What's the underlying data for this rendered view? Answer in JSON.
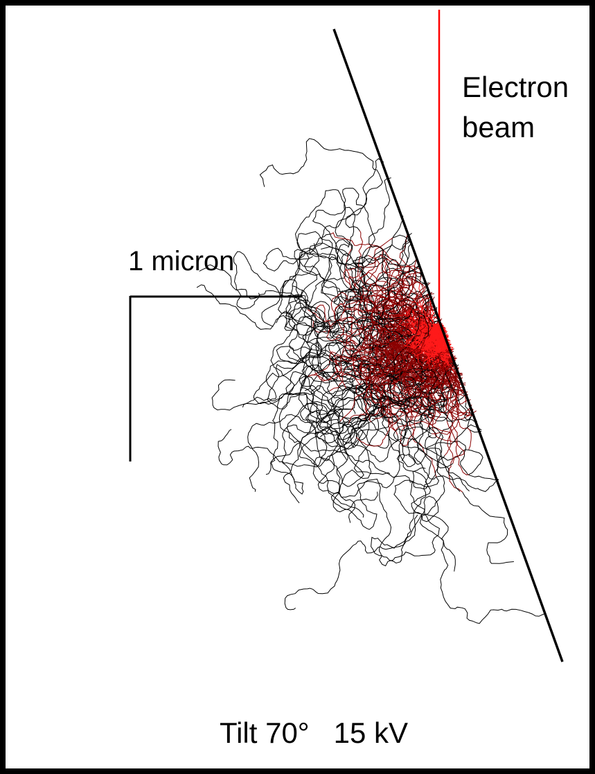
{
  "beam_label": {
    "line1": "Electron",
    "line2": "beam"
  },
  "scale_label": "1 micron",
  "caption": "Tilt 70°   15 kV"
}
